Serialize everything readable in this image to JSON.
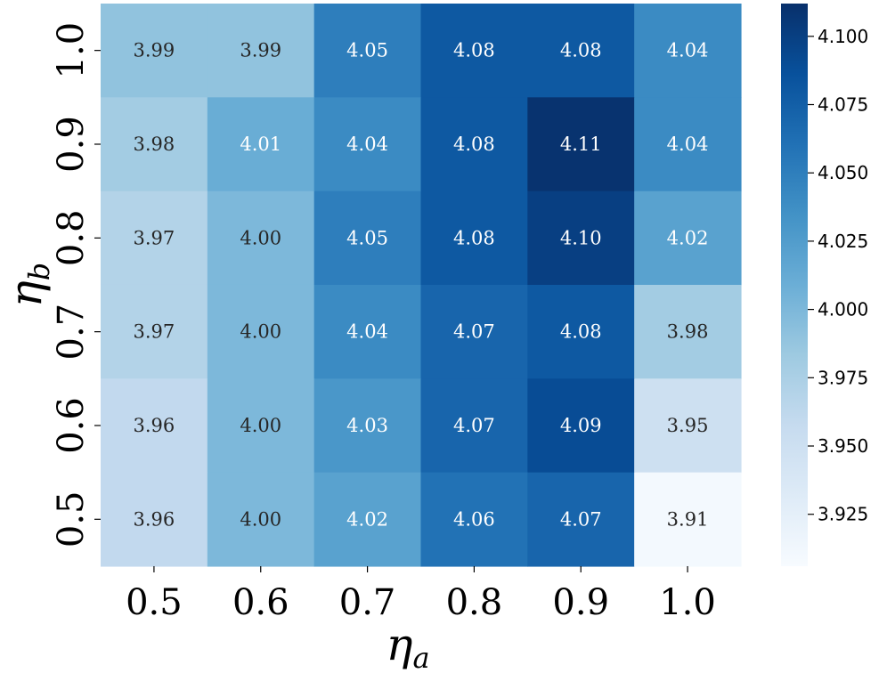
{
  "chart_data": {
    "type": "heatmap",
    "xlabel": "η",
    "xlabel_sub": "a",
    "ylabel": "η",
    "ylabel_sub": "b",
    "x_categories": [
      "0.5",
      "0.6",
      "0.7",
      "0.8",
      "0.9",
      "1.0"
    ],
    "y_categories": [
      "1.0",
      "0.9",
      "0.8",
      "0.7",
      "0.6",
      "0.5"
    ],
    "values": [
      [
        3.99,
        3.99,
        4.05,
        4.08,
        4.08,
        4.04
      ],
      [
        3.98,
        4.01,
        4.04,
        4.08,
        4.11,
        4.04
      ],
      [
        3.97,
        4.0,
        4.05,
        4.08,
        4.1,
        4.02
      ],
      [
        3.97,
        4.0,
        4.04,
        4.07,
        4.08,
        3.98
      ],
      [
        3.96,
        4.0,
        4.03,
        4.07,
        4.09,
        3.95
      ],
      [
        3.96,
        4.0,
        4.02,
        4.06,
        4.07,
        3.91
      ]
    ],
    "value_format": "0.00",
    "colormap": "Blues",
    "colorbar": {
      "vmin": 3.906,
      "vmax": 4.112,
      "ticks": [
        3.925,
        3.95,
        3.975,
        4.0,
        4.025,
        4.05,
        4.075,
        4.1
      ],
      "tick_labels": [
        "3.925",
        "3.950",
        "3.975",
        "4.000",
        "4.025",
        "4.050",
        "4.075",
        "4.100"
      ],
      "placement": "right"
    }
  }
}
